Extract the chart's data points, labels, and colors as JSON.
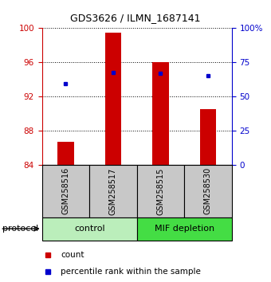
{
  "title": "GDS3626 / ILMN_1687141",
  "samples": [
    "GSM258516",
    "GSM258517",
    "GSM258515",
    "GSM258530"
  ],
  "bar_values": [
    86.7,
    99.5,
    96.0,
    90.5
  ],
  "bar_base": 84,
  "blue_dot_values": [
    93.5,
    94.8,
    94.7,
    94.4
  ],
  "ylim": [
    84,
    100
  ],
  "yticks_left": [
    84,
    88,
    92,
    96,
    100
  ],
  "yticks_right": [
    0,
    25,
    50,
    75,
    100
  ],
  "bar_color": "#cc0000",
  "dot_color": "#0000cc",
  "groups": [
    {
      "label": "control",
      "indices": [
        0,
        1
      ],
      "color": "#bbeebb"
    },
    {
      "label": "MIF depletion",
      "indices": [
        2,
        3
      ],
      "color": "#44dd44"
    }
  ],
  "protocol_label": "protocol",
  "legend_count_label": "count",
  "legend_pct_label": "percentile rank within the sample",
  "left_axis_color": "#cc0000",
  "right_axis_color": "#0000cc",
  "bar_width": 0.35,
  "sample_bg_color": "#c8c8c8"
}
